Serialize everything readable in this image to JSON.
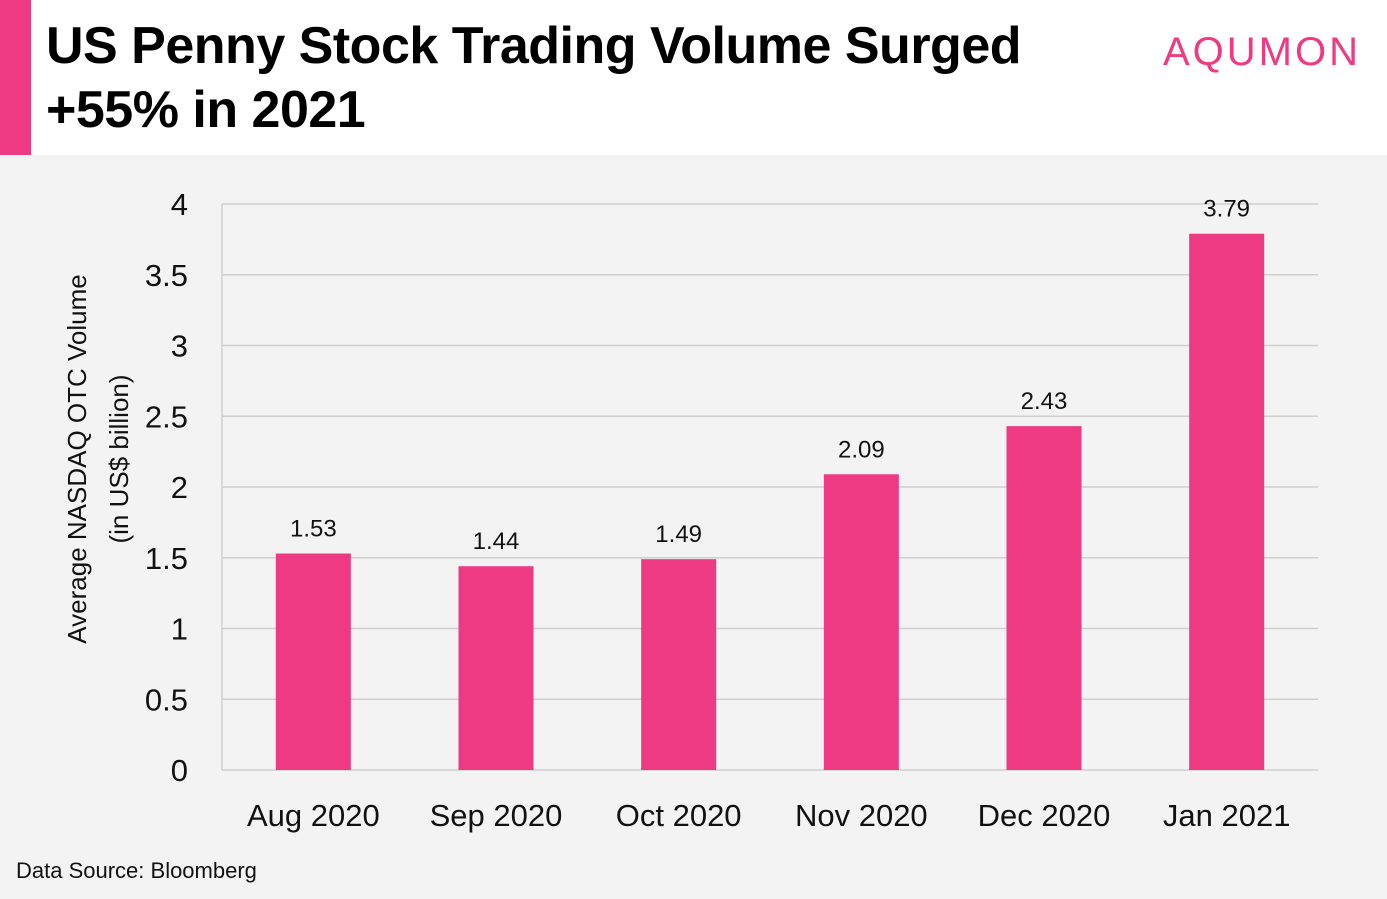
{
  "header": {
    "title": "US Penny Stock Trading Volume Surged +55% in 2021",
    "brand": "AQUMON"
  },
  "colors": {
    "accent": "#ee3a82",
    "bar": "#ee3a82",
    "grid": "#cfcfcf",
    "background": "#f3f3f3"
  },
  "chart_data": {
    "type": "bar",
    "title": "US Penny Stock Trading Volume Surged +55% in 2021",
    "categories": [
      "Aug 2020",
      "Sep 2020",
      "Oct 2020",
      "Nov 2020",
      "Dec 2020",
      "Jan 2021"
    ],
    "values": [
      1.53,
      1.44,
      1.49,
      2.09,
      2.43,
      3.79
    ],
    "data_labels": [
      "1.53",
      "1.44",
      "1.49",
      "2.09",
      "2.43",
      "3.79"
    ],
    "ylabel_line1": "Average NASDAQ OTC Volume",
    "ylabel_line2": "(in US$ billion)",
    "xlabel": "",
    "ylim": [
      0,
      4
    ],
    "yticks": [
      0,
      0.5,
      1,
      1.5,
      2,
      2.5,
      3,
      3.5,
      4
    ],
    "ytick_labels": [
      "0",
      "0.5",
      "1",
      "1.5",
      "2",
      "2.5",
      "3",
      "3.5",
      "4"
    ],
    "grid": true,
    "legend": "none"
  },
  "footer": {
    "source": "Data Source: Bloomberg"
  }
}
